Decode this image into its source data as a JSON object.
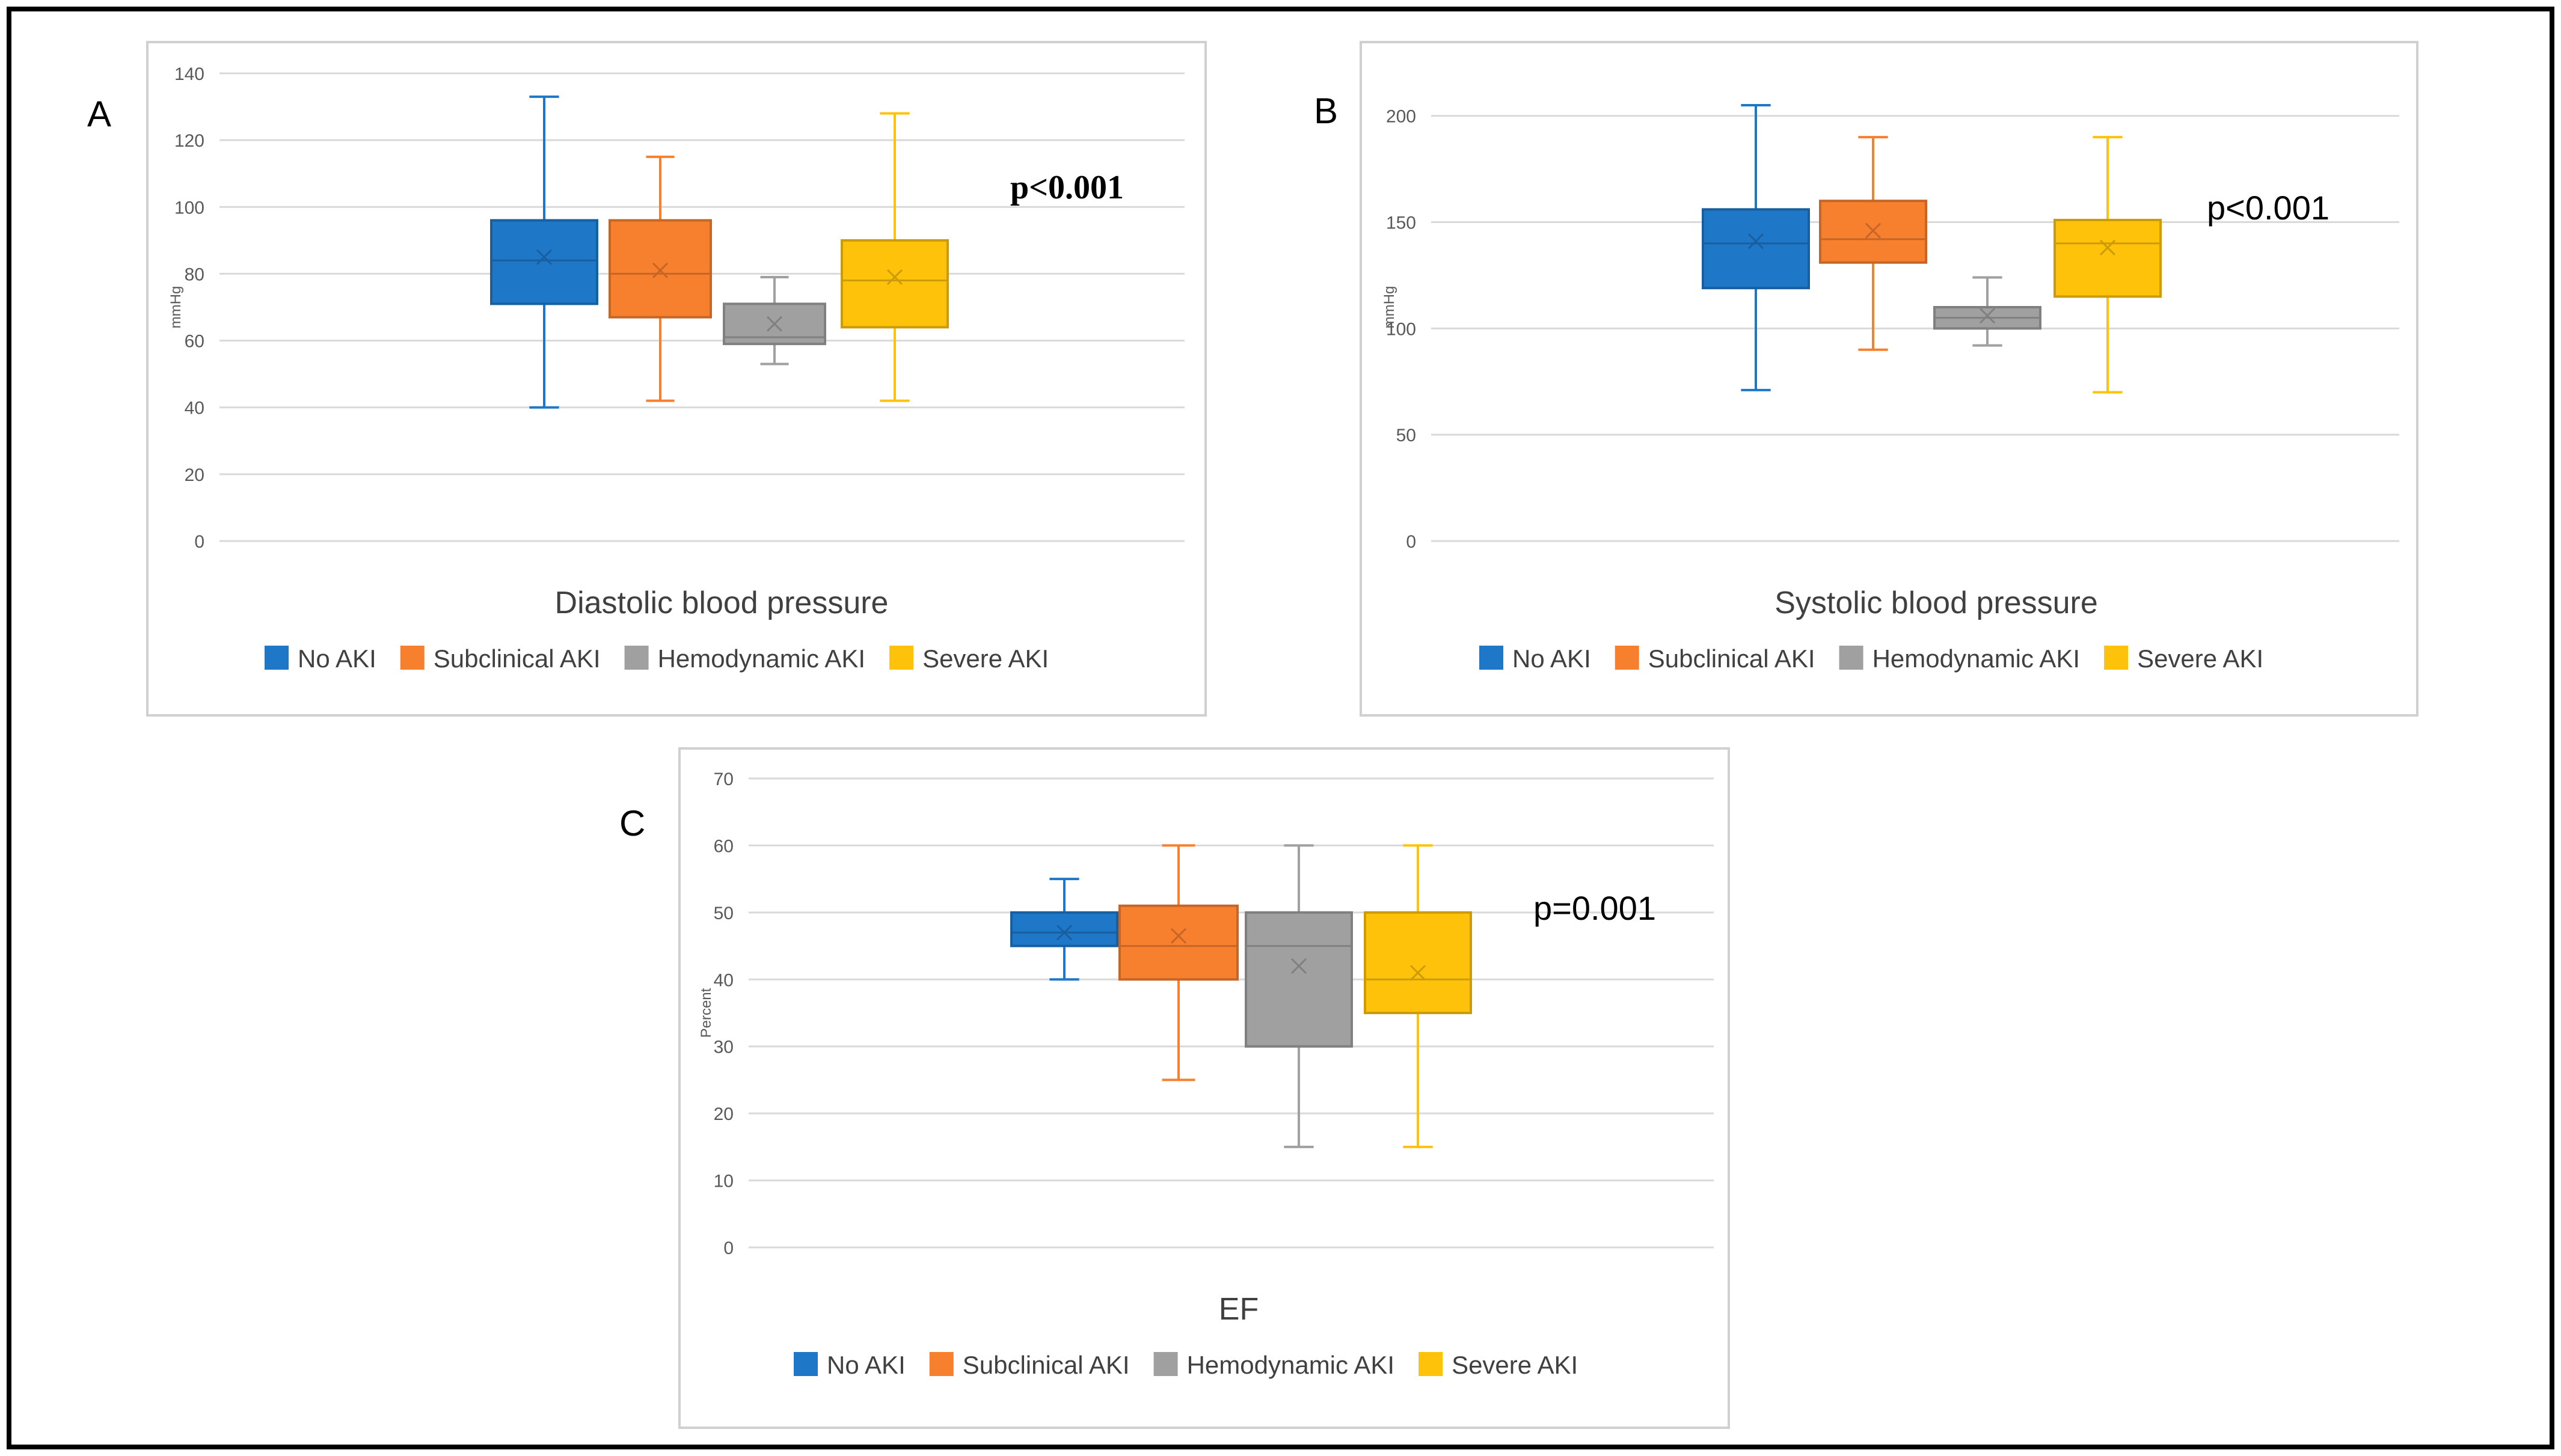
{
  "colors": {
    "no_aki": "#1f77c8",
    "subclinical_aki": "#f7802f",
    "hemodynamic_aki": "#a0a0a0",
    "severe_aki": "#ffc20a",
    "grid": "#d9d9d9",
    "panel_border": "#d0d0d0",
    "frame_border": "#000000",
    "axis_text": "#595959"
  },
  "legend": [
    "No AKI",
    "Subclinical AKI",
    "Hemodynamic AKI",
    "Severe AKI"
  ],
  "chart_data": [
    {
      "panel": "A",
      "type": "box",
      "title": "Diastolic blood pressure",
      "ylabel": "mmHg",
      "ylim": [
        0,
        140
      ],
      "yticks": [
        0,
        20,
        40,
        60,
        80,
        100,
        120,
        140
      ],
      "grid": true,
      "pvalue": "p<0.001",
      "series": [
        {
          "name": "No AKI",
          "min": 40,
          "q1": 71,
          "median": 84,
          "q3": 96,
          "max": 133,
          "mean": 85
        },
        {
          "name": "Subclinical AKI",
          "min": 42,
          "q1": 67,
          "median": 80,
          "q3": 96,
          "max": 115,
          "mean": 81
        },
        {
          "name": "Hemodynamic AKI",
          "min": 53,
          "q1": 59,
          "median": 61,
          "q3": 71,
          "max": 79,
          "mean": 65
        },
        {
          "name": "Severe AKI",
          "min": 42,
          "q1": 64,
          "median": 78,
          "q3": 90,
          "max": 128,
          "mean": 79
        }
      ]
    },
    {
      "panel": "B",
      "type": "box",
      "title": "Systolic blood pressure",
      "ylabel": "mmHg",
      "ylim": [
        0,
        220
      ],
      "yticks": [
        0,
        50,
        100,
        150,
        200
      ],
      "grid": true,
      "pvalue": "p<0.001",
      "series": [
        {
          "name": "No AKI",
          "min": 71,
          "q1": 119,
          "median": 140,
          "q3": 156,
          "max": 205,
          "mean": 141
        },
        {
          "name": "Subclinical AKI",
          "min": 90,
          "q1": 131,
          "median": 142,
          "q3": 160,
          "max": 190,
          "mean": 146
        },
        {
          "name": "Hemodynamic AKI",
          "min": 92,
          "q1": 100,
          "median": 105,
          "q3": 110,
          "max": 124,
          "mean": 106
        },
        {
          "name": "Severe AKI",
          "min": 70,
          "q1": 115,
          "median": 140,
          "q3": 151,
          "max": 190,
          "mean": 138
        }
      ]
    },
    {
      "panel": "C",
      "type": "box",
      "title": "EF",
      "ylabel": "Percent",
      "ylim": [
        0,
        70
      ],
      "yticks": [
        0,
        10,
        20,
        30,
        40,
        50,
        60,
        70
      ],
      "grid": true,
      "pvalue": "p=0.001",
      "series": [
        {
          "name": "No AKI",
          "min": 40,
          "q1": 45,
          "median": 47,
          "q3": 50,
          "max": 55,
          "mean": 47
        },
        {
          "name": "Subclinical AKI",
          "min": 25,
          "q1": 40,
          "median": 45,
          "q3": 51,
          "max": 60,
          "mean": 46.5
        },
        {
          "name": "Hemodynamic AKI",
          "min": 15,
          "q1": 30,
          "median": 45,
          "q3": 50,
          "max": 60,
          "mean": 42
        },
        {
          "name": "Severe AKI",
          "min": 15,
          "q1": 35,
          "median": 40,
          "q3": 50,
          "max": 60,
          "mean": 41
        }
      ]
    }
  ]
}
